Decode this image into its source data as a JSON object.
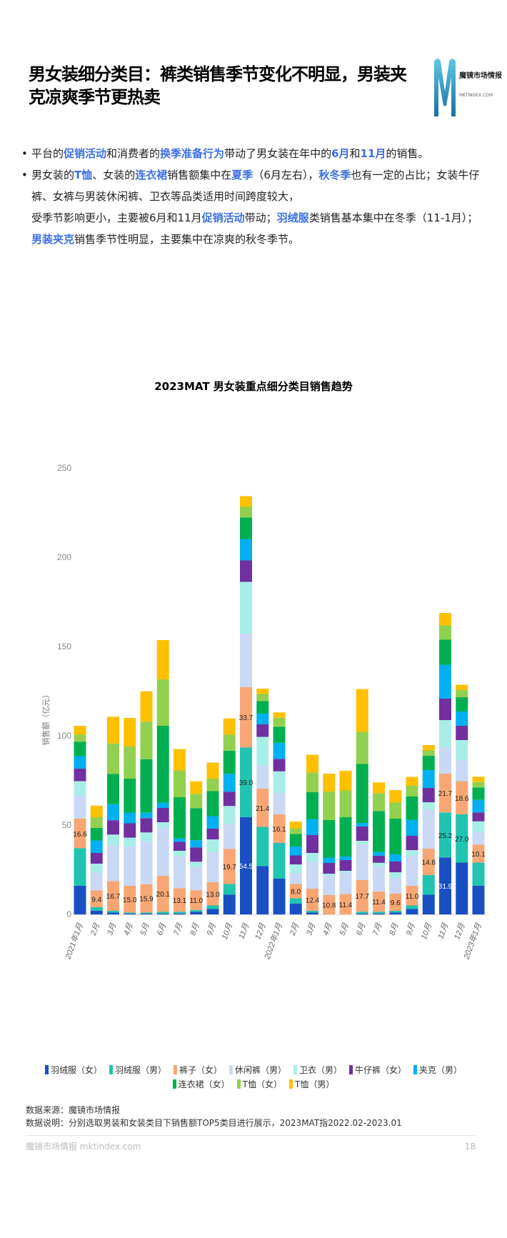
{
  "header": {
    "title": "男女装细分类目：裤类销售季节变化不明显，男装夹克凉爽季节更热卖",
    "logo_name": "魔镜市场情报",
    "logo_url": "MKTINDEX.COM"
  },
  "bullets": [
    [
      {
        "t": "平台的"
      },
      {
        "t": "促销活动",
        "hl": true
      },
      {
        "t": "和消费者的"
      },
      {
        "t": "换季准备行为",
        "hl": true
      },
      {
        "t": "带动了男女装在年中的"
      },
      {
        "t": "6月",
        "hl": true
      },
      {
        "t": "和"
      },
      {
        "t": "11月",
        "hl": true
      },
      {
        "t": "的销售。"
      }
    ],
    [
      {
        "t": "男女装的"
      },
      {
        "t": "T恤",
        "hl": true
      },
      {
        "t": "、女装的"
      },
      {
        "t": "连衣裙",
        "hl": true
      },
      {
        "t": "销售额集中在"
      },
      {
        "t": "夏季",
        "hl": true
      },
      {
        "t": "（6月左右），"
      },
      {
        "t": "秋冬季",
        "hl": true
      },
      {
        "t": "也有一定的占比；女装牛仔裤、女裤与男装休闲裤、卫衣等品类适用时间跨度较大，"
      }
    ],
    [
      {
        "t": "受季节影响更小，主要被6月和11月"
      },
      {
        "t": "促销活动",
        "hl": true
      },
      {
        "t": "带动；"
      },
      {
        "t": "羽绒服",
        "hl": true
      },
      {
        "t": "类销售基本集中在冬季（11-1月）；"
      },
      {
        "t": "男装夹克",
        "hl": true
      },
      {
        "t": "销售季节性明显，主要集中在凉爽的秋冬季节。"
      }
    ]
  ],
  "colors": {
    "highlight": "#3b6fe3"
  },
  "chart_data": {
    "type": "bar",
    "stacked": true,
    "title": "2023MAT 男女装重点细分类目销售趋势",
    "xlabel": "",
    "ylabel": "销售额（亿元）",
    "ylim": [
      0,
      250
    ],
    "yticks": [
      0,
      50,
      100,
      150,
      200,
      250
    ],
    "grid": false,
    "legend_position": "bottom",
    "categories": [
      "2021年1月",
      "2月",
      "3月",
      "4月",
      "5月",
      "6月",
      "7月",
      "8月",
      "9月",
      "10月",
      "11月",
      "12月",
      "2022年1月",
      "2月",
      "3月",
      "4月",
      "5月",
      "6月",
      "7月",
      "8月",
      "9月",
      "10月",
      "11月",
      "12月",
      "2023年1月"
    ],
    "series": [
      {
        "name": "羽绒服（女）",
        "color": "#1a4fc4",
        "values": [
          16,
          2,
          1,
          0.5,
          0.5,
          0.5,
          0.5,
          1.5,
          3,
          11,
          54.5,
          27,
          20,
          6,
          1,
          0,
          0,
          0.5,
          0.5,
          1,
          3,
          11,
          31.9,
          29,
          16
        ]
      },
      {
        "name": "羽绒服（男）",
        "color": "#20c4b0",
        "values": [
          21,
          2,
          1,
          0.5,
          0.5,
          1,
          1,
          1,
          2,
          6,
          39.0,
          22,
          20,
          3,
          1,
          0,
          0,
          1,
          1,
          1,
          2,
          11,
          25.2,
          27.0,
          13
        ]
      },
      {
        "name": "裤子（女）",
        "color": "#f8a774",
        "values": [
          16.6,
          9.4,
          16.7,
          15.0,
          15.9,
          20.1,
          13.1,
          11.0,
          13.0,
          19.7,
          33.7,
          21.4,
          16.1,
          8.0,
          12.4,
          10.8,
          11.4,
          17.7,
          11.4,
          9.6,
          11.0,
          14.8,
          21.7,
          18.6,
          10.1
        ]
      },
      {
        "name": "休闲裤（男）",
        "color": "#c9d8f5",
        "values": [
          13,
          10,
          20,
          22,
          24,
          27,
          18,
          13,
          17,
          14,
          30,
          13,
          12,
          6,
          15,
          11,
          12,
          20,
          14,
          9,
          17,
          22,
          15,
          12,
          7
        ]
      },
      {
        "name": "卫衣（男）",
        "color": "#a8eee6",
        "values": [
          8,
          5,
          6,
          5,
          5,
          3,
          3,
          3,
          7,
          10,
          29,
          16,
          12,
          5,
          5,
          1,
          1,
          2,
          2,
          3,
          3,
          4,
          15,
          11,
          6
        ]
      },
      {
        "name": "牛仔裤（女）",
        "color": "#7030a0",
        "values": [
          7,
          6,
          8,
          8,
          8,
          8,
          5,
          8,
          6,
          8,
          12,
          7,
          7,
          5,
          10,
          6,
          6,
          8,
          4,
          6,
          8,
          8,
          12,
          8,
          5
        ]
      },
      {
        "name": "夹克（男）",
        "color": "#00b0f0",
        "values": [
          7,
          7,
          9,
          6,
          3,
          3,
          2,
          4,
          7,
          10,
          12,
          6,
          9,
          5,
          9,
          3,
          2,
          2,
          2,
          4,
          9,
          10,
          19,
          8,
          7
        ]
      },
      {
        "name": "连衣裙（女）",
        "color": "#00b050",
        "values": [
          8,
          7,
          17,
          19,
          30,
          43,
          23,
          18,
          14,
          13,
          12,
          7,
          9,
          7,
          15,
          21,
          22,
          33,
          23,
          20,
          13,
          8,
          14,
          8,
          7
        ]
      },
      {
        "name": "T恤（女）",
        "color": "#92d050",
        "values": [
          4,
          6,
          17,
          18,
          21,
          26,
          15,
          8,
          7,
          9,
          6,
          4,
          5,
          3,
          11,
          16,
          15,
          18,
          10,
          9,
          6,
          3,
          8,
          4,
          3
        ]
      },
      {
        "name": "T恤（男）",
        "color": "#ffc000",
        "values": [
          5,
          6.5,
          15,
          16,
          17,
          22,
          12,
          7,
          9,
          9,
          6,
          3,
          3,
          4,
          10,
          10,
          11,
          24,
          6,
          7,
          5,
          3,
          7,
          3,
          3
        ]
      }
    ],
    "data_labels_series": "裤子（女）",
    "extra_data_labels": [
      [
        10,
        0
      ],
      [
        10,
        1
      ],
      [
        22,
        0
      ],
      [
        22,
        1
      ],
      [
        23,
        1
      ]
    ]
  },
  "footer": {
    "source": "数据来源：魔镜市场情报",
    "note": "数据说明：分别选取男装和女装类目下销售额TOP5类目进行展示，2023MAT指2022.02-2023.01",
    "brand": "魔镜市场情报 mktindex.com",
    "page_number": "18"
  }
}
